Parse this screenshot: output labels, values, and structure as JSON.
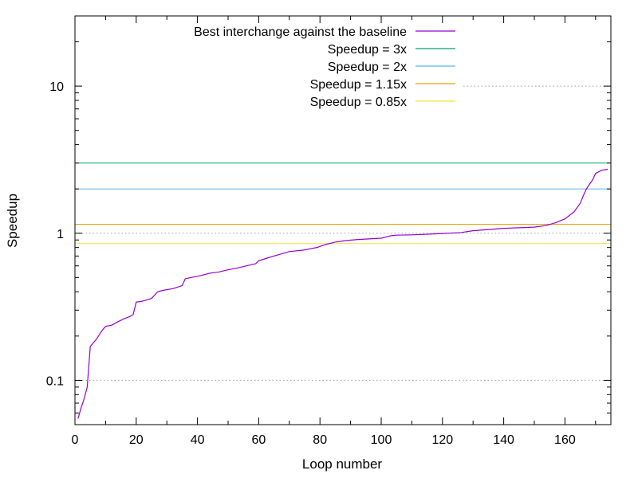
{
  "chart_data": {
    "type": "line",
    "title": "",
    "xlabel": "Loop number",
    "ylabel": "Speedup",
    "xlim": [
      0,
      175
    ],
    "ylim": [
      0.05,
      30
    ],
    "yscale": "log",
    "grid": {
      "y_major": true,
      "x": false
    },
    "legend_position": "top-right",
    "x_ticks": [
      0,
      20,
      40,
      60,
      80,
      100,
      120,
      140,
      160
    ],
    "y_ticks": [
      0.1,
      1,
      10
    ],
    "y_tick_labels": [
      "0.1",
      "1",
      "10"
    ],
    "series": [
      {
        "name": "Best interchange against the baseline",
        "color": "#9400d3",
        "x": [
          1,
          2,
          3,
          4,
          5,
          6,
          7,
          8,
          9,
          10,
          12,
          14,
          16,
          18,
          19,
          20,
          22,
          25,
          27,
          29,
          32,
          35,
          36,
          38,
          41,
          44,
          47,
          50,
          53,
          56,
          59,
          60,
          62,
          65,
          70,
          75,
          79,
          82,
          85,
          88,
          92,
          96,
          100,
          103,
          105,
          110,
          115,
          120,
          126,
          130,
          135,
          140,
          145,
          150,
          154,
          157,
          160,
          163,
          165,
          166,
          167,
          168,
          169,
          170,
          172,
          174
        ],
        "y": [
          0.055,
          0.065,
          0.075,
          0.09,
          0.17,
          0.18,
          0.19,
          0.205,
          0.22,
          0.233,
          0.237,
          0.25,
          0.262,
          0.272,
          0.28,
          0.34,
          0.345,
          0.36,
          0.4,
          0.41,
          0.42,
          0.44,
          0.49,
          0.5,
          0.515,
          0.535,
          0.545,
          0.565,
          0.58,
          0.6,
          0.62,
          0.65,
          0.67,
          0.7,
          0.75,
          0.77,
          0.8,
          0.84,
          0.87,
          0.89,
          0.905,
          0.915,
          0.925,
          0.96,
          0.97,
          0.975,
          0.985,
          0.995,
          1.01,
          1.04,
          1.06,
          1.08,
          1.09,
          1.1,
          1.13,
          1.18,
          1.25,
          1.4,
          1.6,
          1.8,
          2.0,
          2.15,
          2.3,
          2.55,
          2.68,
          2.72
        ]
      },
      {
        "name": "Speedup = 3x",
        "color": "#009e73",
        "constant": 3
      },
      {
        "name": "Speedup = 2x",
        "color": "#56b4e9",
        "constant": 2
      },
      {
        "name": "Speedup = 1.15x",
        "color": "#e69f00",
        "constant": 1.15
      },
      {
        "name": "Speedup = 0.85x",
        "color": "#f0e442",
        "constant": 0.85
      }
    ]
  }
}
